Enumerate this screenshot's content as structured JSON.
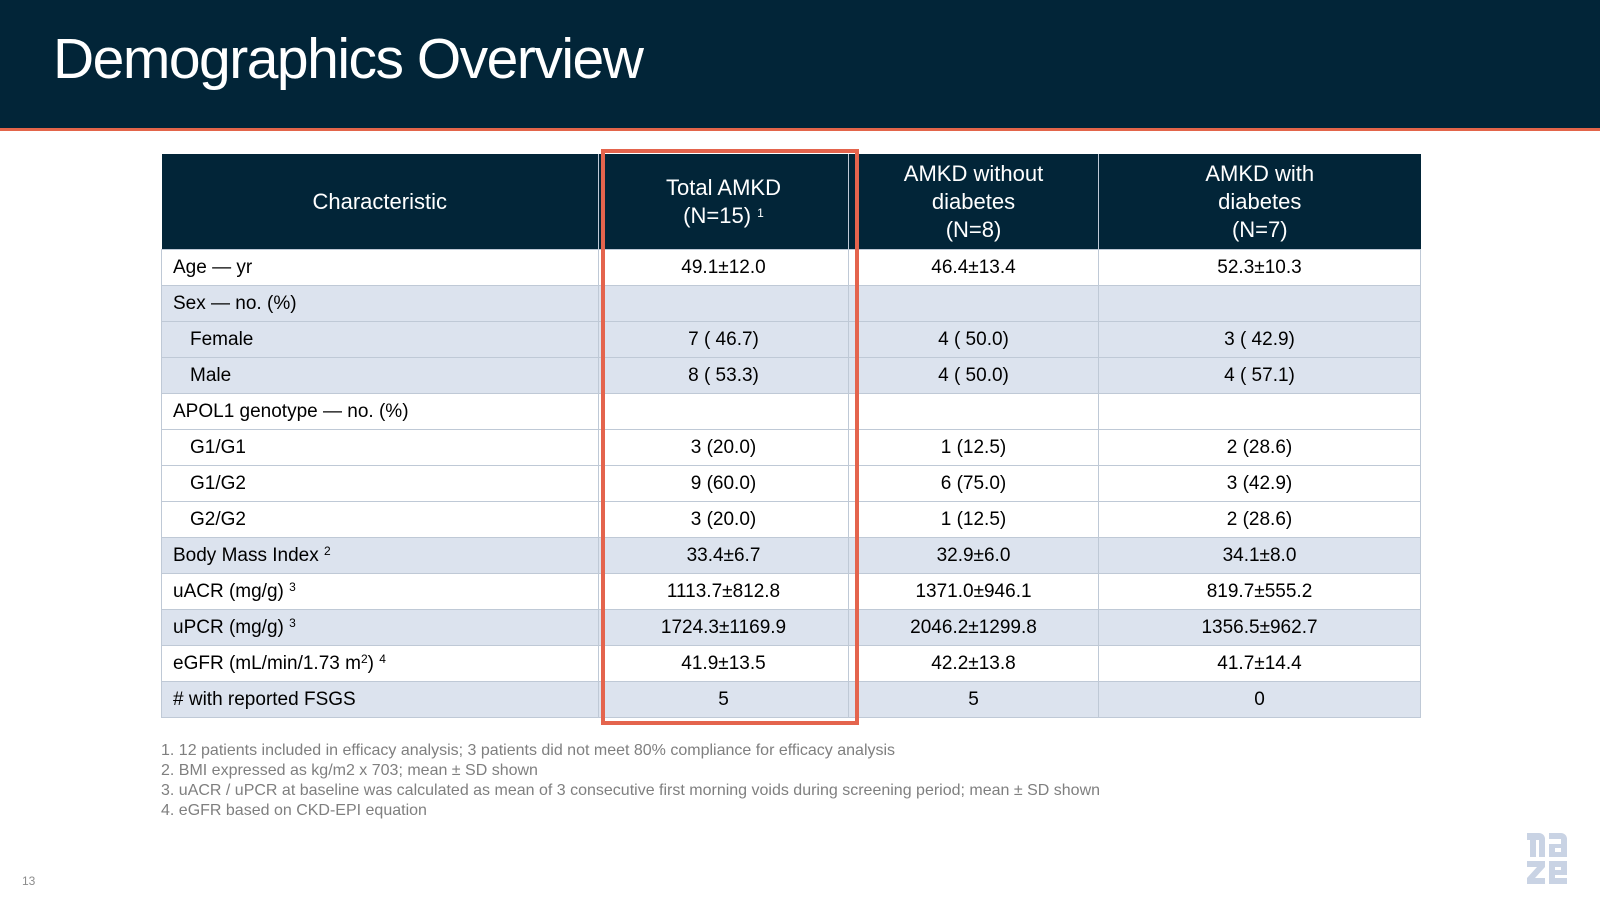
{
  "title": "Demographics Overview",
  "table": {
    "headers": [
      {
        "lines": [
          "Characteristic"
        ],
        "sup": ""
      },
      {
        "lines": [
          "Total AMKD",
          "(N=15)"
        ],
        "sup": "1"
      },
      {
        "lines": [
          "AMKD without",
          "diabetes",
          "(N=8)"
        ],
        "sup": ""
      },
      {
        "lines": [
          "AMKD with",
          "diabetes",
          "(N=7)"
        ],
        "sup": ""
      }
    ],
    "rows": [
      {
        "label": "Age — yr",
        "sup": "",
        "indent": false,
        "shade": false,
        "values": [
          "49.1±12.0",
          "46.4±13.4",
          "52.3±10.3"
        ]
      },
      {
        "label": "Sex — no. (%)",
        "sup": "",
        "indent": false,
        "shade": true,
        "values": [
          "",
          "",
          ""
        ]
      },
      {
        "label": "Female",
        "sup": "",
        "indent": true,
        "shade": true,
        "values": [
          "7 ( 46.7)",
          "4 ( 50.0)",
          "3 ( 42.9)"
        ]
      },
      {
        "label": "Male",
        "sup": "",
        "indent": true,
        "shade": true,
        "values": [
          "8 ( 53.3)",
          "4 ( 50.0)",
          "4 ( 57.1)"
        ]
      },
      {
        "label": "APOL1 genotype — no. (%)",
        "sup": "",
        "indent": false,
        "shade": false,
        "values": [
          "",
          "",
          ""
        ]
      },
      {
        "label": "G1/G1",
        "sup": "",
        "indent": true,
        "shade": false,
        "values": [
          "3 (20.0)",
          "1 (12.5)",
          "2 (28.6)"
        ]
      },
      {
        "label": "G1/G2",
        "sup": "",
        "indent": true,
        "shade": false,
        "values": [
          "9 (60.0)",
          "6 (75.0)",
          "3 (42.9)"
        ]
      },
      {
        "label": "G2/G2",
        "sup": "",
        "indent": true,
        "shade": false,
        "values": [
          "3 (20.0)",
          "1 (12.5)",
          "2 (28.6)"
        ]
      },
      {
        "label": "Body Mass Index",
        "sup": "2",
        "indent": false,
        "shade": true,
        "values": [
          "33.4±6.7",
          "32.9±6.0",
          "34.1±8.0"
        ]
      },
      {
        "label": "uACR (mg/g)",
        "sup": "3",
        "indent": false,
        "shade": false,
        "values": [
          "1113.7±812.8",
          "1371.0±946.1",
          "819.7±555.2"
        ]
      },
      {
        "label": "uPCR (mg/g)",
        "sup": "3",
        "indent": false,
        "shade": true,
        "values": [
          "1724.3±1169.9",
          "2046.2±1299.8",
          "1356.5±962.7"
        ]
      },
      {
        "label": "eGFR (mL/min/1.73 m",
        "labelSup": "2",
        "labelEnd": ")",
        "sup": "4",
        "indent": false,
        "shade": false,
        "values": [
          "41.9±13.5",
          "42.2±13.8",
          "41.7±14.4"
        ]
      },
      {
        "label": "# with reported FSGS",
        "sup": "",
        "indent": false,
        "shade": true,
        "values": [
          "5",
          "5",
          "0"
        ]
      }
    ]
  },
  "footnotes": [
    "1. 12 patients included in efficacy analysis; 3 patients did not meet 80% compliance for efficacy analysis",
    "2. BMI expressed as kg/m2 x 703; mean ± SD shown",
    "3. uACR / uPCR at baseline was calculated as mean of 3 consecutive first morning voids during screening period; mean ± SD shown",
    "4. eGFR based on CKD-EPI equation"
  ],
  "page_number": "13",
  "logo": {
    "text": "maze",
    "color": "#c9d3e4",
    "name": "company-logo"
  }
}
